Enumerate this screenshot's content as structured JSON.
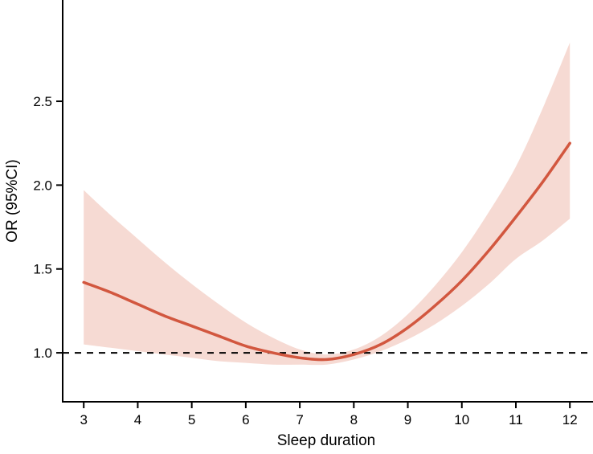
{
  "chart_data": {
    "type": "line",
    "xlabel": "Sleep duration",
    "ylabel": "OR (95%CI)",
    "x": [
      3,
      3.5,
      4,
      4.5,
      5,
      5.5,
      6,
      6.5,
      7,
      7.5,
      8,
      8.5,
      9,
      9.5,
      10,
      10.5,
      11,
      11.5,
      12
    ],
    "series": [
      {
        "name": "OR",
        "values": [
          1.42,
          1.36,
          1.29,
          1.22,
          1.16,
          1.1,
          1.04,
          1.0,
          0.97,
          0.96,
          0.99,
          1.05,
          1.15,
          1.28,
          1.43,
          1.61,
          1.81,
          2.02,
          2.25
        ]
      },
      {
        "name": "CI upper",
        "values": [
          1.97,
          1.82,
          1.68,
          1.54,
          1.41,
          1.29,
          1.18,
          1.09,
          1.02,
          0.99,
          1.02,
          1.1,
          1.23,
          1.4,
          1.6,
          1.84,
          2.11,
          2.46,
          2.85
        ]
      },
      {
        "name": "CI lower",
        "values": [
          1.05,
          1.03,
          1.01,
          0.99,
          0.97,
          0.95,
          0.94,
          0.93,
          0.93,
          0.93,
          0.96,
          1.01,
          1.08,
          1.17,
          1.28,
          1.41,
          1.56,
          1.67,
          1.8
        ]
      }
    ],
    "x_tick_labels": [
      "3",
      "4",
      "5",
      "6",
      "7",
      "8",
      "9",
      "10",
      "11",
      "12"
    ],
    "x_tick_values": [
      3,
      4,
      5,
      6,
      7,
      8,
      9,
      10,
      11,
      12
    ],
    "y_tick_labels": [
      "1.0",
      "1.5",
      "2.0",
      "2.5"
    ],
    "y_tick_values": [
      1.0,
      1.5,
      2.0,
      2.5
    ],
    "reference_line_y": 1.0,
    "xlim": [
      2.61,
      12.22
    ],
    "ylim": [
      0.708,
      3.104
    ],
    "grid": false,
    "legend": "none",
    "colors": {
      "line": "#d2573f",
      "band": "#f6dad3",
      "reference": "#000000",
      "axis": "#000000"
    }
  }
}
